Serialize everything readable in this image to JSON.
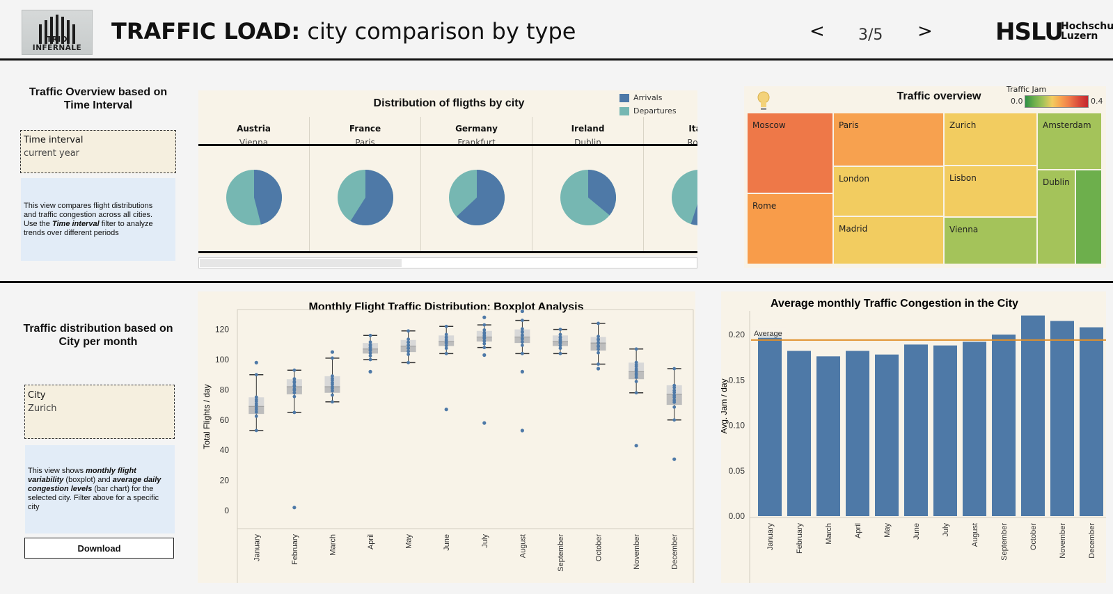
{
  "header": {
    "logo_text": "TRIO INFERNALE",
    "title_bold": "TRAFFIC LOAD:",
    "title_rest": " city comparison by type",
    "nav_prev": "<",
    "nav_next": ">",
    "page_indicator": "3/5",
    "brand": "HSLU",
    "brand_sub_1": "Hochschule",
    "brand_sub_2": "Luzern"
  },
  "top_left": {
    "title": "Traffic Overview based on Time Interval",
    "filter_label": "Time interval",
    "filter_value": "current year",
    "desc_1": "This view compares flight distributions and traffic congestion across all cities. Use the ",
    "desc_em": "Time interval",
    "desc_2": " filter to analyze trends over different periods"
  },
  "bottom_left": {
    "title": "Traffic distribution based on City per month",
    "filter_label": "City",
    "filter_value": "Zurich",
    "desc_1": "This view shows ",
    "desc_em1": "monthly flight variability",
    "desc_2": " (boxplot) and ",
    "desc_em2": "average daily congestion levels",
    "desc_3": " (bar chart) for the selected city. Filter above for a specific city",
    "download_label": "Download"
  },
  "pie_panel": {
    "title": "Distribution of fligths by city",
    "legend_arrivals": "Arrivals",
    "legend_departures": "Departures"
  },
  "treemap_panel": {
    "title": "Traffic overview",
    "legend_title": "Traffic Jam",
    "legend_min": "0.0",
    "legend_max": "0.4"
  },
  "colors": {
    "arrivals": "#4e79a7",
    "departures": "#76b7b2",
    "bar": "#4e79a7",
    "average_line": "#e0902b",
    "panel_bg": "#f8f3e8"
  },
  "chart_data": [
    {
      "type": "pie",
      "title": "Distribution of fligths by city",
      "legend": [
        "Arrivals",
        "Departures"
      ],
      "categories": [
        {
          "country": "Austria",
          "city": "Vienna",
          "arrivals": 0.46,
          "departures": 0.54
        },
        {
          "country": "France",
          "city": "Paris",
          "arrivals": 0.59,
          "departures": 0.41
        },
        {
          "country": "Germany",
          "city": "Frankfurt",
          "arrivals": 0.63,
          "departures": 0.37
        },
        {
          "country": "Ireland",
          "city": "Dublin",
          "arrivals": 0.36,
          "departures": 0.64
        },
        {
          "country": "Italy",
          "city": "Rome",
          "arrivals": 0.55,
          "departures": 0.45
        }
      ]
    },
    {
      "type": "heatmap",
      "title": "Traffic overview",
      "legend_title": "Traffic Jam",
      "color_range": [
        0.0,
        0.4
      ],
      "cells": [
        {
          "label": "Moscow",
          "color": "#ee7848"
        },
        {
          "label": "Rome",
          "color": "#f89c4a"
        },
        {
          "label": "Paris",
          "color": "#f7a14f"
        },
        {
          "label": "London",
          "color": "#f2cc60"
        },
        {
          "label": "Madrid",
          "color": "#f2cc60"
        },
        {
          "label": "Zurich",
          "color": "#f2cc60"
        },
        {
          "label": "Lisbon",
          "color": "#f2cc60"
        },
        {
          "label": "Vienna",
          "color": "#a4c35a"
        },
        {
          "label": "Amsterdam",
          "color": "#a4c35a"
        },
        {
          "label": "Dublin",
          "color": "#a4c35a"
        },
        {
          "label": "",
          "color": "#6daf4c"
        }
      ]
    },
    {
      "type": "boxplot",
      "title": "Monthly Flight Traffic Distribution: Boxplot Analysis",
      "ylabel": "Total Flights / day",
      "ylim": [
        0,
        130
      ],
      "yticks": [
        0,
        20,
        40,
        60,
        80,
        100,
        120
      ],
      "categories": [
        "January",
        "February",
        "March",
        "April",
        "May",
        "June",
        "July",
        "August",
        "September",
        "October",
        "November",
        "December"
      ],
      "boxes": [
        {
          "whisker_low": 53,
          "q1": 64,
          "median": 69,
          "q3": 75,
          "whisker_high": 90,
          "outliers": [
            98
          ]
        },
        {
          "whisker_low": 65,
          "q1": 77,
          "median": 82,
          "q3": 87,
          "whisker_high": 93,
          "outliers": [
            2
          ]
        },
        {
          "whisker_low": 72,
          "q1": 78,
          "median": 82,
          "q3": 89,
          "whisker_high": 101,
          "outliers": [
            105
          ]
        },
        {
          "whisker_low": 100,
          "q1": 104,
          "median": 107,
          "q3": 111,
          "whisker_high": 116,
          "outliers": [
            92
          ]
        },
        {
          "whisker_low": 98,
          "q1": 105,
          "median": 109,
          "q3": 113,
          "whisker_high": 119,
          "outliers": []
        },
        {
          "whisker_low": 104,
          "q1": 109,
          "median": 112,
          "q3": 116,
          "whisker_high": 122,
          "outliers": [
            67
          ]
        },
        {
          "whisker_low": 108,
          "q1": 112,
          "median": 115,
          "q3": 119,
          "whisker_high": 123,
          "outliers": [
            103,
            128,
            58
          ]
        },
        {
          "whisker_low": 104,
          "q1": 111,
          "median": 115,
          "q3": 120,
          "whisker_high": 126,
          "outliers": [
            132,
            92,
            53
          ]
        },
        {
          "whisker_low": 104,
          "q1": 109,
          "median": 112,
          "q3": 116,
          "whisker_high": 120,
          "outliers": []
        },
        {
          "whisker_low": 97,
          "q1": 106,
          "median": 111,
          "q3": 115,
          "whisker_high": 124,
          "outliers": [
            94
          ]
        },
        {
          "whisker_low": 78,
          "q1": 87,
          "median": 92,
          "q3": 98,
          "whisker_high": 107,
          "outliers": [
            43
          ]
        },
        {
          "whisker_low": 60,
          "q1": 70,
          "median": 77,
          "q3": 83,
          "whisker_high": 94,
          "outliers": [
            34
          ]
        }
      ]
    },
    {
      "type": "bar",
      "title": "Average monthly Traffic Congestion in the City",
      "ylabel": "Avg. Jam / day",
      "ylim": [
        0,
        0.225
      ],
      "yticks": [
        "0.00",
        "0.05",
        "0.10",
        "0.15",
        "0.20"
      ],
      "categories": [
        "January",
        "February",
        "March",
        "April",
        "May",
        "June",
        "July",
        "August",
        "September",
        "October",
        "November",
        "December"
      ],
      "values": [
        0.2,
        0.182,
        0.176,
        0.182,
        0.178,
        0.189,
        0.188,
        0.192,
        0.2,
        0.221,
        0.215,
        0.208
      ],
      "reference_line": {
        "label": "Average",
        "value": 0.194
      }
    }
  ]
}
